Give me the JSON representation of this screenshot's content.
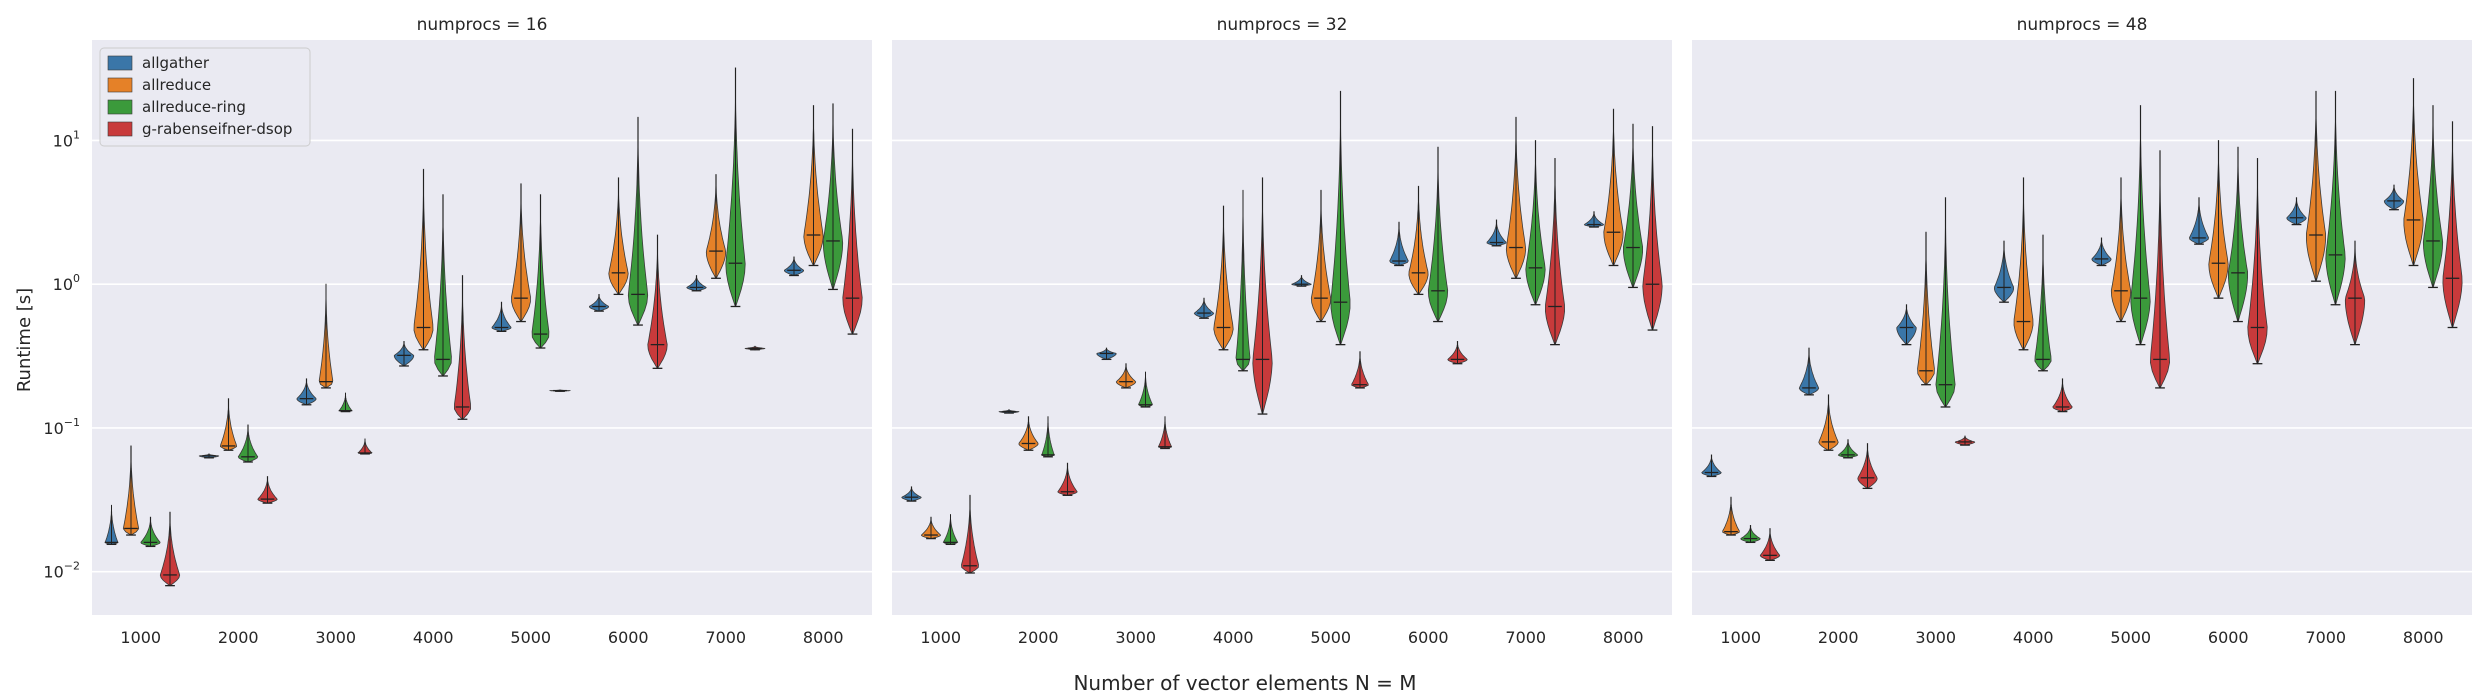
{
  "chart_data": {
    "type": "violin",
    "xlabel": "Number of vector elements N = M",
    "ylabel": "Runtime [s]",
    "yscale": "log",
    "ylim": [
      0.005,
      50
    ],
    "y_ticks": [
      0.01,
      0.1,
      1,
      10
    ],
    "y_tick_labels": [
      "10",
      "10",
      "10",
      "10"
    ],
    "y_tick_exponents": [
      "−2",
      "−1",
      "0",
      "1"
    ],
    "categories": [
      "1000",
      "2000",
      "3000",
      "4000",
      "5000",
      "6000",
      "7000",
      "8000"
    ],
    "grid": true,
    "legend_position": "top-left",
    "legend": [
      {
        "name": "allgather",
        "color": "#3a76a8"
      },
      {
        "name": "allreduce",
        "color": "#e58128"
      },
      {
        "name": "allreduce-ring",
        "color": "#3b9a3b"
      },
      {
        "name": "g-rabenseifner-dsop",
        "color": "#c83a3b"
      }
    ],
    "panels": [
      {
        "title": "numprocs = 16",
        "series": [
          {
            "name": "allgather",
            "min": [
              0.0155,
              0.062,
              0.145,
              0.27,
              0.47,
              0.65,
              0.9,
              1.15
            ],
            "median": [
              0.016,
              0.064,
              0.16,
              0.32,
              0.5,
              0.7,
              0.95,
              1.25
            ],
            "max": [
              0.029,
              0.066,
              0.22,
              0.4,
              0.75,
              0.85,
              1.15,
              1.55
            ]
          },
          {
            "name": "allreduce",
            "min": [
              0.018,
              0.07,
              0.19,
              0.35,
              0.55,
              0.85,
              1.1,
              1.35
            ],
            "median": [
              0.02,
              0.075,
              0.21,
              0.5,
              0.8,
              1.2,
              1.7,
              2.2
            ],
            "max": [
              0.075,
              0.16,
              1.0,
              6.3,
              5.0,
              5.5,
              5.8,
              17.5
            ]
          },
          {
            "name": "allreduce-ring",
            "min": [
              0.015,
              0.058,
              0.13,
              0.23,
              0.36,
              0.52,
              0.7,
              0.92
            ],
            "median": [
              0.016,
              0.063,
              0.132,
              0.3,
              0.45,
              0.85,
              1.4,
              2.0
            ],
            "max": [
              0.024,
              0.105,
              0.175,
              4.2,
              4.2,
              14.5,
              32.0,
              18.0
            ]
          },
          {
            "name": "g-rabenseifner-dsop",
            "min": [
              0.008,
              0.03,
              0.066,
              0.115,
              0.18,
              0.26,
              0.35,
              0.45
            ],
            "median": [
              0.0095,
              0.032,
              0.067,
              0.14,
              0.182,
              0.38,
              0.358,
              0.8
            ],
            "max": [
              0.026,
              0.046,
              0.084,
              1.15,
              0.184,
              2.2,
              0.37,
              12.0
            ]
          }
        ]
      },
      {
        "title": "numprocs = 32",
        "series": [
          {
            "name": "allgather",
            "min": [
              0.031,
              0.127,
              0.3,
              0.58,
              0.97,
              1.35,
              1.85,
              2.5
            ],
            "median": [
              0.033,
              0.13,
              0.33,
              0.63,
              1.0,
              1.45,
              1.95,
              2.6
            ],
            "max": [
              0.039,
              0.134,
              0.36,
              0.8,
              1.15,
              2.7,
              2.8,
              3.2
            ]
          },
          {
            "name": "allreduce",
            "min": [
              0.017,
              0.07,
              0.19,
              0.35,
              0.55,
              0.85,
              1.1,
              1.35
            ],
            "median": [
              0.018,
              0.078,
              0.21,
              0.5,
              0.8,
              1.2,
              1.8,
              2.3
            ],
            "max": [
              0.024,
              0.12,
              0.28,
              3.5,
              4.5,
              4.8,
              14.5,
              16.5
            ]
          },
          {
            "name": "allreduce-ring",
            "min": [
              0.0155,
              0.063,
              0.14,
              0.25,
              0.38,
              0.55,
              0.72,
              0.95
            ],
            "median": [
              0.016,
              0.065,
              0.145,
              0.3,
              0.75,
              0.9,
              1.3,
              1.8
            ],
            "max": [
              0.025,
              0.12,
              0.245,
              4.5,
              22.0,
              9.0,
              10.0,
              13.0
            ]
          },
          {
            "name": "g-rabenseifner-dsop",
            "min": [
              0.0098,
              0.034,
              0.072,
              0.125,
              0.19,
              0.28,
              0.38,
              0.48
            ],
            "median": [
              0.011,
              0.036,
              0.074,
              0.3,
              0.2,
              0.3,
              0.7,
              1.0
            ],
            "max": [
              0.034,
              0.057,
              0.12,
              5.5,
              0.34,
              0.4,
              7.5,
              12.5
            ]
          }
        ]
      },
      {
        "title": "numprocs = 48",
        "series": [
          {
            "name": "allgather",
            "min": [
              0.046,
              0.17,
              0.38,
              0.75,
              1.35,
              1.9,
              2.6,
              3.3
            ],
            "median": [
              0.049,
              0.19,
              0.5,
              0.95,
              1.5,
              2.1,
              2.9,
              3.8
            ],
            "max": [
              0.065,
              0.36,
              0.72,
              2.0,
              2.1,
              4.0,
              4.0,
              4.9
            ]
          },
          {
            "name": "allreduce",
            "min": [
              0.018,
              0.07,
              0.2,
              0.35,
              0.55,
              0.8,
              1.05,
              1.35
            ],
            "median": [
              0.019,
              0.08,
              0.25,
              0.55,
              0.9,
              1.4,
              2.2,
              2.8
            ],
            "max": [
              0.033,
              0.17,
              2.3,
              5.5,
              5.5,
              10.0,
              22.0,
              27.0
            ]
          },
          {
            "name": "allreduce-ring",
            "min": [
              0.016,
              0.062,
              0.14,
              0.25,
              0.38,
              0.55,
              0.72,
              0.95
            ],
            "median": [
              0.017,
              0.065,
              0.2,
              0.3,
              0.8,
              1.2,
              1.6,
              2.0
            ],
            "max": [
              0.021,
              0.083,
              4.0,
              2.2,
              17.5,
              9.0,
              22.0,
              17.5
            ]
          },
          {
            "name": "g-rabenseifner-dsop",
            "min": [
              0.012,
              0.038,
              0.076,
              0.13,
              0.19,
              0.28,
              0.38,
              0.5
            ],
            "median": [
              0.013,
              0.045,
              0.08,
              0.14,
              0.3,
              0.5,
              0.8,
              1.1
            ],
            "max": [
              0.02,
              0.078,
              0.088,
              0.22,
              8.5,
              7.5,
              2.0,
              13.5
            ]
          }
        ]
      }
    ]
  }
}
